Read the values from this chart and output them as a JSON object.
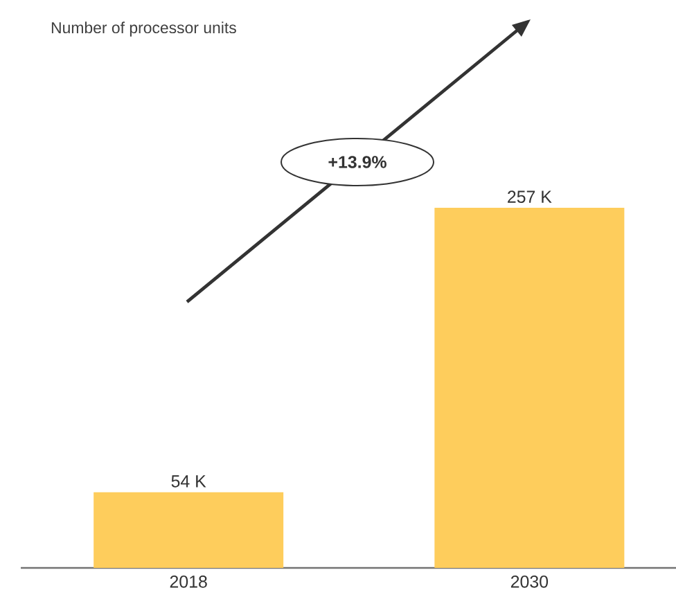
{
  "chart_data": {
    "type": "bar",
    "title": "Number of processor units",
    "categories": [
      "2018",
      "2030"
    ],
    "values": [
      54,
      257
    ],
    "value_labels": [
      "54 K",
      "257 K"
    ],
    "color": "#fecd5c",
    "annotations": [
      "+13.9%"
    ]
  }
}
